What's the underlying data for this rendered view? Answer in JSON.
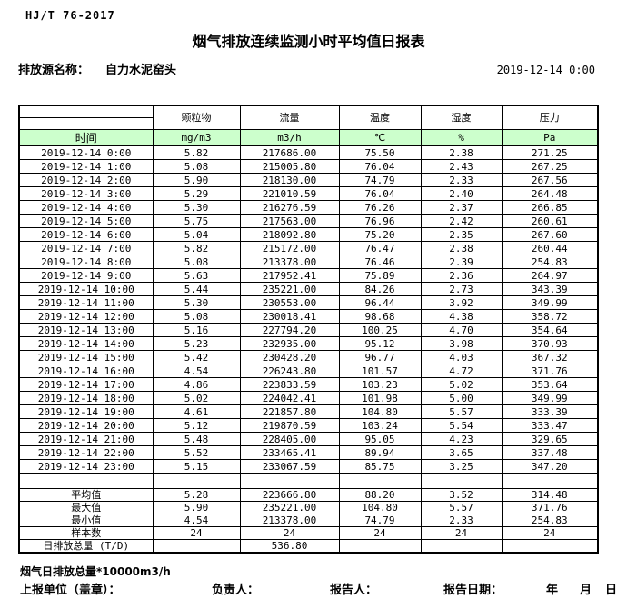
{
  "header": {
    "standard_code": "HJ/T  76-2017",
    "title": "烟气排放连续监测小时平均值日报表",
    "source_label": "排放源名称：",
    "source_name": "自力水泥窑头",
    "report_datetime": "2019-12-14  0:00"
  },
  "table": {
    "time_header": "时间",
    "pollutant_headers": [
      "颗粒物",
      "流量",
      "温度",
      "湿度",
      "压力"
    ],
    "unit_headers": [
      "mg/m3",
      "m3/h",
      "℃",
      "%",
      "Pa"
    ],
    "rows": [
      {
        "time": "2019-12-14  0:00",
        "values": [
          "5.82",
          "217686.00",
          "75.50",
          "2.38",
          "271.25"
        ]
      },
      {
        "time": "2019-12-14  1:00",
        "values": [
          "5.08",
          "215005.80",
          "76.04",
          "2.43",
          "267.25"
        ]
      },
      {
        "time": "2019-12-14  2:00",
        "values": [
          "5.90",
          "218130.00",
          "74.79",
          "2.33",
          "267.56"
        ]
      },
      {
        "time": "2019-12-14  3:00",
        "values": [
          "5.29",
          "221010.59",
          "76.04",
          "2.40",
          "264.48"
        ]
      },
      {
        "time": "2019-12-14  4:00",
        "values": [
          "5.30",
          "216276.59",
          "76.26",
          "2.37",
          "266.85"
        ]
      },
      {
        "time": "2019-12-14  5:00",
        "values": [
          "5.75",
          "217563.00",
          "76.96",
          "2.42",
          "260.61"
        ]
      },
      {
        "time": "2019-12-14  6:00",
        "values": [
          "5.04",
          "218092.80",
          "75.20",
          "2.35",
          "267.60"
        ]
      },
      {
        "time": "2019-12-14  7:00",
        "values": [
          "5.82",
          "215172.00",
          "76.47",
          "2.38",
          "260.44"
        ]
      },
      {
        "time": "2019-12-14  8:00",
        "values": [
          "5.08",
          "213378.00",
          "76.46",
          "2.39",
          "254.83"
        ]
      },
      {
        "time": "2019-12-14  9:00",
        "values": [
          "5.63",
          "217952.41",
          "75.89",
          "2.36",
          "264.97"
        ]
      },
      {
        "time": "2019-12-14 10:00",
        "values": [
          "5.44",
          "235221.00",
          "84.26",
          "2.73",
          "343.39"
        ]
      },
      {
        "time": "2019-12-14 11:00",
        "values": [
          "5.30",
          "230553.00",
          "96.44",
          "3.92",
          "349.99"
        ]
      },
      {
        "time": "2019-12-14 12:00",
        "values": [
          "5.08",
          "230018.41",
          "98.68",
          "4.38",
          "358.72"
        ]
      },
      {
        "time": "2019-12-14 13:00",
        "values": [
          "5.16",
          "227794.20",
          "100.25",
          "4.70",
          "354.64"
        ]
      },
      {
        "time": "2019-12-14 14:00",
        "values": [
          "5.23",
          "232935.00",
          "95.12",
          "3.98",
          "370.93"
        ]
      },
      {
        "time": "2019-12-14 15:00",
        "values": [
          "5.42",
          "230428.20",
          "96.77",
          "4.03",
          "367.32"
        ]
      },
      {
        "time": "2019-12-14 16:00",
        "values": [
          "4.54",
          "226243.80",
          "101.57",
          "4.72",
          "371.76"
        ]
      },
      {
        "time": "2019-12-14 17:00",
        "values": [
          "4.86",
          "223833.59",
          "103.23",
          "5.02",
          "353.64"
        ]
      },
      {
        "time": "2019-12-14 18:00",
        "values": [
          "5.02",
          "224042.41",
          "101.98",
          "5.00",
          "349.99"
        ]
      },
      {
        "time": "2019-12-14 19:00",
        "values": [
          "4.61",
          "221857.80",
          "104.80",
          "5.57",
          "333.39"
        ]
      },
      {
        "time": "2019-12-14 20:00",
        "values": [
          "5.12",
          "219870.59",
          "103.24",
          "5.54",
          "333.47"
        ]
      },
      {
        "time": "2019-12-14 21:00",
        "values": [
          "5.48",
          "228405.00",
          "95.05",
          "4.23",
          "329.65"
        ]
      },
      {
        "time": "2019-12-14 22:00",
        "values": [
          "5.52",
          "233465.41",
          "89.94",
          "3.65",
          "337.48"
        ]
      },
      {
        "time": "2019-12-14 23:00",
        "values": [
          "5.15",
          "233067.59",
          "85.75",
          "3.25",
          "347.20"
        ]
      }
    ],
    "summary": [
      {
        "label": "平均值",
        "values": [
          "5.28",
          "223666.80",
          "88.20",
          "3.52",
          "314.48"
        ]
      },
      {
        "label": "最大值",
        "values": [
          "5.90",
          "235221.00",
          "104.80",
          "5.57",
          "371.76"
        ]
      },
      {
        "label": "最小值",
        "values": [
          "4.54",
          "213378.00",
          "74.79",
          "2.33",
          "254.83"
        ]
      },
      {
        "label": "样本数",
        "values": [
          "24",
          "24",
          "24",
          "24",
          "24"
        ]
      },
      {
        "label": "日排放总量 (T/D)",
        "values": [
          "",
          "536.80",
          "",
          "",
          ""
        ]
      }
    ]
  },
  "footer": {
    "note": "烟气日排放总量*10000m3/h",
    "report_unit_label": "上报单位（盖章）：",
    "responsible_label": "负责人：",
    "reporter_label": "报告人：",
    "report_date_label": "报告日期：",
    "year_label": "年",
    "month_label": "月",
    "day_label": "日"
  },
  "colors": {
    "header_green": "#ccffcc",
    "border": "#000000",
    "background": "#ffffff"
  }
}
